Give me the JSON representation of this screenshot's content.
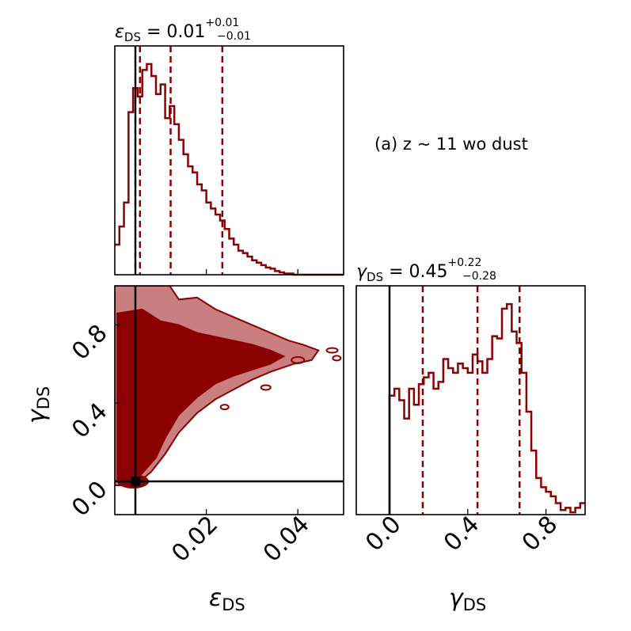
{
  "chart_data": {
    "type": "corner",
    "colors": {
      "main": "#8b0000",
      "contour_outer": "#c97f7f",
      "truth": "#000000"
    },
    "annotation": "(a) z ~ 11 wo dust",
    "truth": {
      "eps": 0.0045,
      "gamma": 0.0
    },
    "eps_hist": {
      "title_symbol": "ε",
      "title_sub": "DS",
      "title_value": " = 0.01",
      "title_plus": "+0.01",
      "title_minus": "−0.01",
      "xlim": [
        0.0,
        0.05
      ],
      "quantiles": [
        0.0055,
        0.0122,
        0.0235
      ],
      "bin_width": 0.001,
      "counts": [
        25,
        40,
        60,
        135,
        155,
        148,
        170,
        175,
        165,
        150,
        158,
        130,
        140,
        125,
        112,
        100,
        90,
        85,
        75,
        70,
        60,
        55,
        50,
        45,
        38,
        30,
        25,
        20,
        18,
        15,
        12,
        10,
        8,
        6,
        5,
        3,
        2,
        1,
        1,
        0,
        0,
        0,
        0,
        0,
        0,
        0,
        0,
        0,
        0,
        0
      ],
      "ylim": [
        0,
        190
      ]
    },
    "gamma_hist": {
      "title_symbol": "γ",
      "title_sub": "DS",
      "title_value": " = 0.45",
      "title_plus": "+0.22",
      "title_minus": "−0.28",
      "xlim": [
        -0.17,
        1.0
      ],
      "xticks": [
        0.0,
        0.4,
        0.8
      ],
      "xtick_labels": [
        "0.0",
        "0.4",
        "0.8"
      ],
      "xlabel_symbol": "γ",
      "xlabel_sub": "DS",
      "quantiles": [
        0.17,
        0.45,
        0.665
      ],
      "bins_start": 0.0,
      "bin_width": 0.025,
      "counts": [
        52,
        55,
        50,
        42,
        55,
        48,
        57,
        60,
        62,
        55,
        58,
        68,
        64,
        62,
        66,
        64,
        62,
        70,
        67,
        62,
        68,
        78,
        77,
        90,
        92,
        80,
        75,
        62,
        45,
        28,
        16,
        12,
        10,
        8,
        5,
        2,
        3,
        1,
        3,
        5
      ],
      "ylim": [
        0,
        100
      ]
    },
    "joint": {
      "xlim": [
        0.0,
        0.05
      ],
      "ylim": [
        -0.17,
        1.0
      ],
      "xticks": [
        0.02,
        0.04
      ],
      "xtick_labels": [
        "0.02",
        "0.04"
      ],
      "yticks": [
        0.0,
        0.4,
        0.8
      ],
      "ytick_labels": [
        "0.0",
        "0.4",
        "0.8"
      ],
      "xlabel_symbol": "ε",
      "xlabel_sub": "DS",
      "ylabel_symbol": "γ",
      "ylabel_sub": "DS"
    }
  }
}
